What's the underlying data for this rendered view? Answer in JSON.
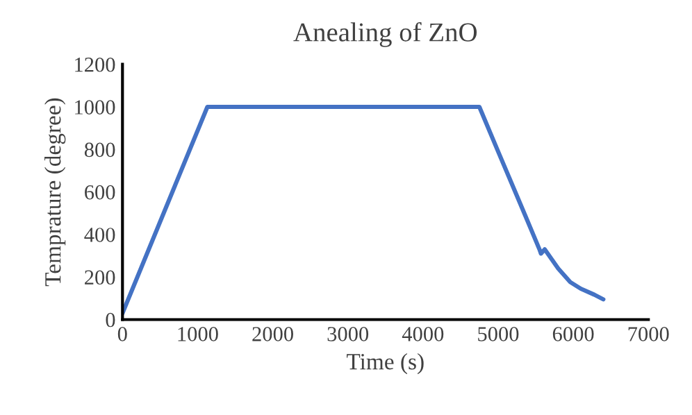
{
  "chart_data": {
    "type": "line",
    "title": "Anealing of ZnO",
    "xlabel": "Time (s)",
    "ylabel": "Temprature (degree)",
    "series": [
      {
        "color": "#4472c4",
        "x": [
          0,
          1130,
          4750,
          5000,
          5300,
          5550,
          5570,
          5620,
          5800,
          5960,
          6100,
          6280,
          6400
        ],
        "values": [
          30,
          1000,
          1000,
          790,
          540,
          330,
          310,
          330,
          240,
          176,
          145,
          117,
          95
        ]
      }
    ],
    "xlim": [
      0,
      7000
    ],
    "xticks": [
      0,
      1000,
      2000,
      3000,
      4000,
      5000,
      6000,
      7000
    ],
    "ylim": [
      0,
      1200
    ],
    "yticks": [
      0,
      200,
      400,
      600,
      800,
      1000,
      1200
    ],
    "grid": false,
    "legend": false
  }
}
